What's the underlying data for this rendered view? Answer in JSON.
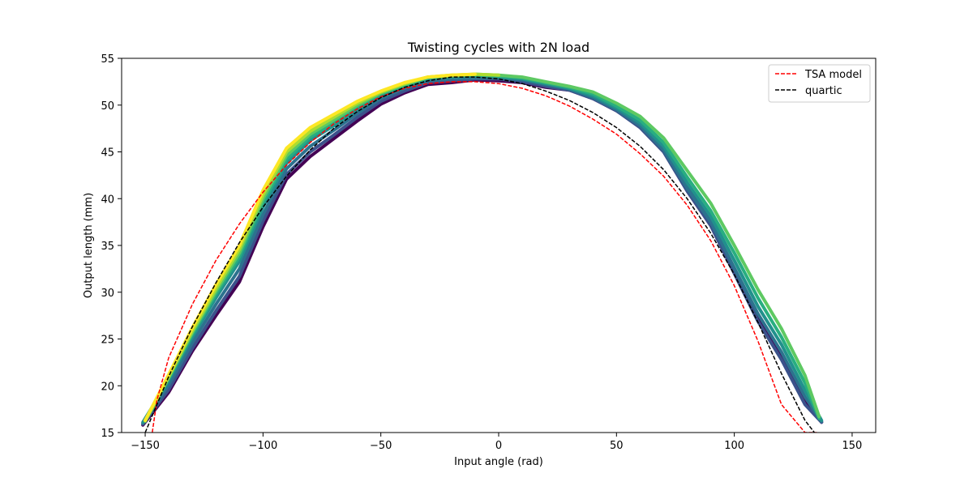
{
  "chart_data": {
    "type": "line",
    "title": "Twisting cycles with 2N load",
    "xlabel": "Input angle (rad)",
    "ylabel": "Output length (mm)",
    "xlim": [
      -160,
      160
    ],
    "ylim": [
      15,
      55
    ],
    "xticks": [
      -150,
      -100,
      -50,
      0,
      50,
      100,
      150
    ],
    "xtick_labels": [
      "−150",
      "−100",
      "−50",
      "0",
      "50",
      "100",
      "150"
    ],
    "yticks": [
      15,
      20,
      25,
      30,
      35,
      40,
      45,
      50,
      55
    ],
    "ytick_labels": [
      "15",
      "20",
      "25",
      "30",
      "35",
      "40",
      "45",
      "50",
      "55"
    ],
    "grid": false,
    "legend_position": "upper right",
    "colors": {
      "tsa_model": "#ff0000",
      "quartic": "#000000",
      "cycles": [
        "#440154",
        "#3b528b",
        "#2c728e",
        "#21918c",
        "#28ae80",
        "#5ec962",
        "#addc30",
        "#fde725"
      ]
    },
    "data_series": [
      {
        "x": [
          -151,
          -140,
          -130,
          -120,
          -110,
          -100,
          -90,
          -80,
          -70,
          -60,
          -50,
          -40,
          -30,
          -20,
          -10,
          0,
          10,
          20,
          30,
          40,
          50,
          60,
          70,
          80,
          90,
          100,
          110,
          120,
          130,
          137
        ],
        "y": [
          15.8,
          19.3,
          23.7,
          27.5,
          31.1,
          37.0,
          42.1,
          44.5,
          46.4,
          48.3,
          50.1,
          51.3,
          52.2,
          52.4,
          52.7,
          52.6,
          52.4,
          51.9,
          51.6,
          50.7,
          49.4,
          47.8,
          45.4,
          41.2,
          37.5,
          32.4,
          27.3,
          23.2,
          18.3,
          16.1
        ]
      },
      {
        "x": [
          -151,
          -140,
          -130,
          -120,
          -110,
          -100,
          -90,
          -80,
          -70,
          -60,
          -50,
          -40,
          -30,
          -20,
          -10,
          0,
          10,
          20,
          30,
          40,
          50,
          60,
          70,
          80,
          90,
          100,
          110,
          120,
          130,
          137
        ],
        "y": [
          15.9,
          19.6,
          24.0,
          28.0,
          31.7,
          37.6,
          42.6,
          45.0,
          46.8,
          48.7,
          50.4,
          51.5,
          52.4,
          52.6,
          52.8,
          52.8,
          52.5,
          52.0,
          51.6,
          50.7,
          49.4,
          47.6,
          45.0,
          40.8,
          37.1,
          32.0,
          26.9,
          22.8,
          18.0,
          16.1
        ]
      },
      {
        "x": [
          -151,
          -140,
          -130,
          -120,
          -110,
          -100,
          -90,
          -80,
          -70,
          -60,
          -50,
          -40,
          -30,
          -20,
          -10,
          0,
          10,
          20,
          30,
          40,
          50,
          60,
          70,
          80,
          90,
          100,
          110,
          120,
          130,
          137
        ],
        "y": [
          16.0,
          20.1,
          24.6,
          28.7,
          32.5,
          38.3,
          43.2,
          45.6,
          47.3,
          49.1,
          50.7,
          51.8,
          52.6,
          52.8,
          52.9,
          52.9,
          52.7,
          52.2,
          51.7,
          50.8,
          49.5,
          47.8,
          45.2,
          41.1,
          37.5,
          32.6,
          27.7,
          23.6,
          18.8,
          16.2
        ]
      },
      {
        "x": [
          -151,
          -140,
          -130,
          -120,
          -110,
          -100,
          -90,
          -80,
          -70,
          -60,
          -50,
          -40,
          -30,
          -20,
          -10,
          0,
          10,
          20,
          30,
          40,
          50,
          60,
          70,
          80,
          90,
          100,
          110,
          120,
          130,
          137
        ],
        "y": [
          16.1,
          20.6,
          25.2,
          29.4,
          33.3,
          39.1,
          43.8,
          46.2,
          47.8,
          49.5,
          51.0,
          52.0,
          52.8,
          53.0,
          53.1,
          53.0,
          52.8,
          52.3,
          51.8,
          51.0,
          49.7,
          48.1,
          45.6,
          41.7,
          38.1,
          33.4,
          28.5,
          24.4,
          19.5,
          16.3
        ]
      },
      {
        "x": [
          -150,
          -140,
          -130,
          -120,
          -110,
          -100,
          -90,
          -80,
          -70,
          -60,
          -50,
          -40,
          -30,
          -20,
          -10,
          0,
          10,
          20,
          30,
          40,
          50,
          60,
          70,
          80,
          90,
          100,
          110,
          120,
          130,
          136
        ],
        "y": [
          16.2,
          20.8,
          25.5,
          29.8,
          33.8,
          39.6,
          44.2,
          46.6,
          48.1,
          49.8,
          51.2,
          52.1,
          52.9,
          53.1,
          53.2,
          53.1,
          52.9,
          52.4,
          51.9,
          51.2,
          49.9,
          48.4,
          46.0,
          42.3,
          38.7,
          34.2,
          29.4,
          25.2,
          20.3,
          16.5
        ]
      },
      {
        "x": [
          -150,
          -140,
          -130,
          -120,
          -110,
          -100,
          -90,
          -80,
          -70,
          -60,
          -50,
          -40,
          -30,
          -20,
          -10,
          0,
          10,
          20,
          30,
          40,
          50,
          60,
          70,
          80,
          90,
          100,
          110,
          120,
          130,
          136
        ],
        "y": [
          16.2,
          20.9,
          25.7,
          30.1,
          34.2,
          40.0,
          44.6,
          46.9,
          48.4,
          50.0,
          51.3,
          52.2,
          53.0,
          53.1,
          53.3,
          53.2,
          53.0,
          52.5,
          52.0,
          51.4,
          50.2,
          48.8,
          46.5,
          43.0,
          39.5,
          35.0,
          30.3,
          26.1,
          21.1,
          16.7
        ]
      },
      {
        "x": [
          -150,
          -140,
          -130,
          -120,
          -110,
          -100,
          -90,
          -80,
          -70,
          -60,
          -50,
          -40,
          -30,
          -20,
          -10,
          0
        ],
        "y": [
          16.3,
          21.0,
          25.9,
          30.4,
          34.6,
          40.4,
          45.0,
          47.2,
          48.7,
          50.2,
          51.4,
          52.3,
          53.0,
          53.2,
          53.3,
          53.2
        ]
      },
      {
        "x": [
          -150,
          -140,
          -130,
          -120,
          -110,
          -100,
          -90,
          -80,
          -70,
          -60,
          -50,
          -40,
          -30,
          -20,
          -10
        ],
        "y": [
          16.3,
          21.2,
          26.2,
          30.8,
          35.0,
          40.9,
          45.4,
          47.6,
          49.0,
          50.4,
          51.5,
          52.4,
          53.0,
          53.2,
          53.3
        ]
      }
    ],
    "series": [
      {
        "name": "TSA model",
        "style": "dashed",
        "x": [
          -147,
          -145,
          -140,
          -130,
          -120,
          -110,
          -100,
          -90,
          -80,
          -70,
          -60,
          -50,
          -40,
          -30,
          -20,
          -10,
          0,
          10,
          20,
          30,
          40,
          50,
          60,
          70,
          80,
          90,
          100,
          110,
          120,
          130,
          135
        ],
        "y": [
          15.0,
          18.5,
          23.0,
          28.7,
          33.4,
          37.3,
          40.7,
          43.6,
          46.0,
          48.0,
          49.6,
          50.9,
          51.8,
          52.3,
          52.5,
          52.5,
          52.3,
          51.8,
          51.0,
          49.9,
          48.5,
          46.9,
          44.8,
          42.4,
          39.3,
          35.5,
          30.7,
          24.8,
          18.0,
          15.0,
          15.0
        ]
      },
      {
        "name": "quartic",
        "style": "dashed",
        "x": [
          -150,
          -140,
          -130,
          -120,
          -110,
          -100,
          -90,
          -80,
          -70,
          -60,
          -50,
          -40,
          -30,
          -20,
          -10,
          0,
          10,
          20,
          30,
          40,
          50,
          60,
          70,
          80,
          90,
          100,
          110,
          120,
          130,
          134
        ],
        "y": [
          15.0,
          21.0,
          26.3,
          31.0,
          35.3,
          39.1,
          42.4,
          45.2,
          47.5,
          49.3,
          50.8,
          51.9,
          52.6,
          53.0,
          53.0,
          52.8,
          52.3,
          51.5,
          50.5,
          49.2,
          47.6,
          45.6,
          43.1,
          40.0,
          36.3,
          31.9,
          26.8,
          21.3,
          16.3,
          15.0
        ]
      }
    ]
  }
}
